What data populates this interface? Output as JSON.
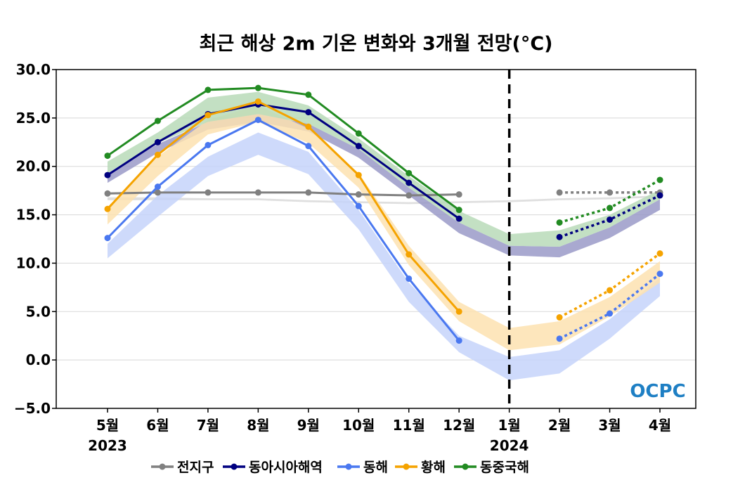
{
  "chart_data": {
    "type": "line",
    "title": "최근 해상 2m 기온 변화와 3개월 전망(°C)",
    "categories": [
      "5월",
      "6월",
      "7월",
      "8월",
      "9월",
      "10월",
      "11월",
      "12월",
      "1월",
      "2월",
      "3월",
      "4월"
    ],
    "year_labels": [
      {
        "category": "5월",
        "label": "2023"
      },
      {
        "category": "1월",
        "label": "2024"
      }
    ],
    "ylim": [
      -5,
      30
    ],
    "yticks": [
      "30.0",
      "25.0",
      "20.0",
      "15.0",
      "10.0",
      "5.0",
      "0.0",
      "−5.0"
    ],
    "ytick_values": [
      30,
      25,
      20,
      15,
      10,
      5,
      0,
      -5
    ],
    "grid": true,
    "divider_category": "1월",
    "legend_placement": "bottom",
    "watermark": "OCPC",
    "series": [
      {
        "name": "전지구",
        "color": "#808080",
        "band_color": "#d9d9d9",
        "observed": [
          17.2,
          17.3,
          17.3,
          17.3,
          17.3,
          17.1,
          17.0,
          17.1,
          null,
          null,
          null,
          null
        ],
        "forecast": [
          null,
          null,
          null,
          null,
          null,
          null,
          null,
          null,
          null,
          17.3,
          17.3,
          17.3
        ],
        "band_low": [
          16.5,
          16.5,
          16.5,
          16.5,
          16.3,
          16.2,
          16.1,
          16.2,
          16.3,
          16.5,
          16.6,
          16.8
        ],
        "band_high": [
          16.8,
          16.8,
          16.7,
          16.7,
          16.5,
          16.4,
          16.3,
          16.4,
          16.5,
          16.7,
          16.8,
          17.0
        ]
      },
      {
        "name": "동아시아해역",
        "color": "#000080",
        "band_color": "#9a9ac8",
        "observed": [
          19.1,
          22.5,
          25.4,
          26.4,
          25.6,
          22.1,
          18.3,
          14.6,
          null,
          null,
          null,
          null
        ],
        "forecast": [
          null,
          null,
          null,
          null,
          null,
          null,
          null,
          null,
          null,
          12.7,
          14.5,
          17.0
        ],
        "band_low": [
          18.3,
          21.4,
          23.8,
          24.6,
          23.6,
          20.9,
          17.0,
          13.1,
          10.8,
          10.6,
          12.6,
          15.5
        ],
        "band_high": [
          19.3,
          22.3,
          24.6,
          25.4,
          24.4,
          21.8,
          17.8,
          14.2,
          11.8,
          11.7,
          13.7,
          16.6
        ]
      },
      {
        "name": "동해",
        "color": "#4a78f0",
        "band_color": "#c6d3fa",
        "observed": [
          12.6,
          17.9,
          22.2,
          24.8,
          22.1,
          15.9,
          8.4,
          2.0,
          null,
          null,
          null,
          null
        ],
        "forecast": [
          null,
          null,
          null,
          null,
          null,
          null,
          null,
          null,
          null,
          2.2,
          4.8,
          8.9
        ],
        "band_low": [
          10.5,
          14.8,
          19.0,
          21.2,
          19.2,
          13.5,
          6.0,
          0.8,
          -2.1,
          -1.4,
          2.2,
          6.6
        ],
        "band_high": [
          12.0,
          17.0,
          21.0,
          23.5,
          21.5,
          15.5,
          8.0,
          2.5,
          0.3,
          1.0,
          4.2,
          8.5
        ]
      },
      {
        "name": "황해",
        "color": "#f5a300",
        "band_color": "#fde2b0",
        "observed": [
          15.6,
          21.2,
          25.3,
          26.7,
          24.1,
          19.1,
          10.9,
          5.0,
          null,
          null,
          null,
          null
        ],
        "forecast": [
          null,
          null,
          null,
          null,
          null,
          null,
          null,
          null,
          null,
          4.4,
          7.2,
          11.0
        ],
        "band_low": [
          14.0,
          19.0,
          23.3,
          24.6,
          22.4,
          17.8,
          9.8,
          4.0,
          1.0,
          1.6,
          4.5,
          8.0
        ],
        "band_high": [
          15.8,
          21.0,
          24.8,
          26.3,
          23.9,
          19.3,
          11.8,
          6.0,
          3.3,
          4.0,
          6.5,
          10.2
        ]
      },
      {
        "name": "동중국해",
        "color": "#228b22",
        "band_color": "#b8dbb8",
        "observed": [
          21.1,
          24.7,
          27.9,
          28.1,
          27.4,
          23.4,
          19.3,
          15.5,
          null,
          null,
          null,
          null
        ],
        "forecast": [
          null,
          null,
          null,
          null,
          null,
          null,
          null,
          null,
          null,
          14.2,
          15.7,
          18.6
        ],
        "band_low": [
          19.3,
          22.4,
          24.6,
          25.4,
          24.4,
          21.8,
          17.8,
          14.2,
          11.8,
          11.7,
          13.7,
          16.6
        ],
        "band_high": [
          20.5,
          23.5,
          27.1,
          27.7,
          26.3,
          22.9,
          19.0,
          15.4,
          13.0,
          13.4,
          15.0,
          17.6
        ]
      }
    ]
  }
}
